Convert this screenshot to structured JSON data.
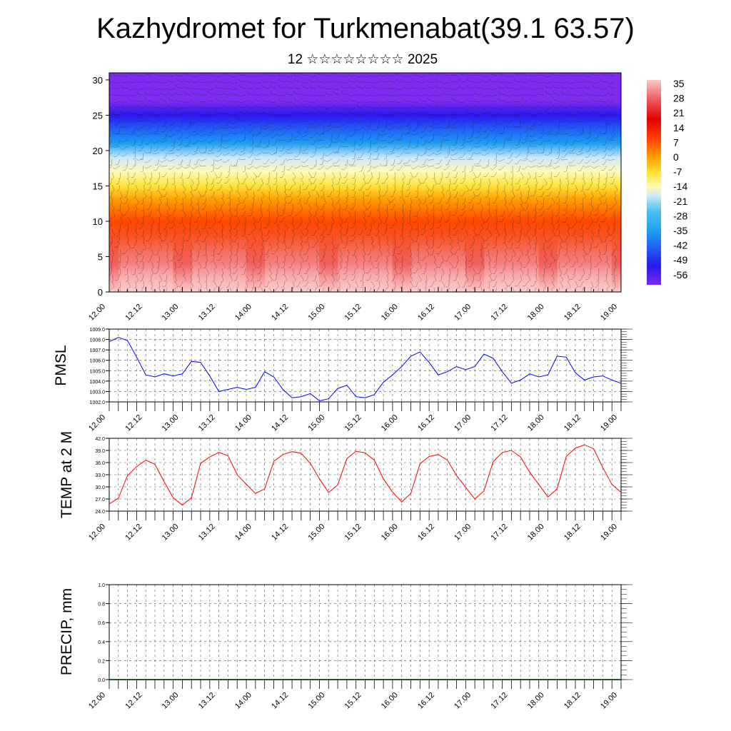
{
  "title": "Kazhydromet for Turkmenabat(39.1 63.57)",
  "subtitle": "12 ☆☆☆☆☆☆☆☆ 2025",
  "time_ticks": [
    "12.00",
    "12.12",
    "13.00",
    "13.12",
    "14.00",
    "14.12",
    "15.00",
    "15.12",
    "16.00",
    "16.12",
    "17.00",
    "17.12",
    "18.00",
    "18.12",
    "19.00"
  ],
  "chart_data": [
    {
      "type": "heatmap",
      "panel": "cross-section",
      "x_categories": [
        "12.00",
        "12.12",
        "13.00",
        "13.12",
        "14.00",
        "14.12",
        "15.00",
        "15.12",
        "16.00",
        "16.12",
        "17.00",
        "17.12",
        "18.00",
        "18.12",
        "19.00"
      ],
      "y_ticks": [
        "0",
        "5",
        "10",
        "15",
        "20",
        "25",
        "30"
      ],
      "ylim": [
        0,
        31
      ],
      "colorbar_labels": [
        "35",
        "28",
        "21",
        "14",
        "7",
        "0",
        "-7",
        "-14",
        "-21",
        "-28",
        "-35",
        "-42",
        "-49",
        "-56"
      ],
      "colorbar_range": [
        -60,
        39
      ],
      "color_stops": [
        {
          "level": 39,
          "color": "#fbcaca"
        },
        {
          "level": 30,
          "color": "#f06060"
        },
        {
          "level": 20,
          "color": "#e00000"
        },
        {
          "level": 10,
          "color": "#ff4800"
        },
        {
          "level": 2,
          "color": "#ff9c00"
        },
        {
          "level": -6,
          "color": "#ffe33a"
        },
        {
          "level": -13,
          "color": "#fefab8"
        },
        {
          "level": -17,
          "color": "#cbe9f7"
        },
        {
          "level": -24,
          "color": "#55c2f0"
        },
        {
          "level": -34,
          "color": "#1f9ff2"
        },
        {
          "level": -42,
          "color": "#2060f4"
        },
        {
          "level": -51,
          "color": "#2a17ee"
        },
        {
          "level": -60,
          "color": "#7e2af0"
        }
      ],
      "temperature_profile": [
        {
          "height": 0,
          "value": 37
        },
        {
          "height": 4,
          "value": 26
        },
        {
          "height": 10,
          "value": 13
        },
        {
          "height": 13,
          "value": 4
        },
        {
          "height": 15,
          "value": -4
        },
        {
          "height": 17,
          "value": -12
        },
        {
          "height": 19,
          "value": -20
        },
        {
          "height": 21,
          "value": -30
        },
        {
          "height": 23,
          "value": -40
        },
        {
          "height": 25,
          "value": -50
        },
        {
          "height": 27,
          "value": -57
        },
        {
          "height": 31,
          "value": -60
        }
      ],
      "overlay": "wind barbs"
    },
    {
      "type": "line",
      "ylabel": "PMSL",
      "x": [
        "12.00",
        "12.03",
        "12.06",
        "12.09",
        "12.12",
        "12.15",
        "12.18",
        "12.21",
        "13.00",
        "13.03",
        "13.06",
        "13.09",
        "13.12",
        "13.15",
        "13.18",
        "13.21",
        "14.00",
        "14.03",
        "14.06",
        "14.09",
        "14.12",
        "14.15",
        "14.18",
        "14.21",
        "15.00",
        "15.03",
        "15.06",
        "15.09",
        "15.12",
        "15.15",
        "15.18",
        "15.21",
        "16.00",
        "16.03",
        "16.06",
        "16.09",
        "16.12",
        "16.15",
        "16.18",
        "16.21",
        "17.00",
        "17.03",
        "17.06",
        "17.09",
        "17.12",
        "17.15",
        "17.18",
        "17.21",
        "18.00",
        "18.03",
        "18.06",
        "18.09",
        "18.12",
        "18.15",
        "18.18",
        "18.21",
        "19.00"
      ],
      "series": [
        {
          "color": "#0000ff",
          "values": [
            1007.8,
            1008.2,
            1007.9,
            1006.3,
            1004.6,
            1004.4,
            1004.7,
            1004.5,
            1004.7,
            1005.9,
            1005.8,
            1004.5,
            1003.0,
            1003.2,
            1003.4,
            1003.2,
            1003.4,
            1004.9,
            1004.4,
            1003.2,
            1002.4,
            1002.5,
            1002.8,
            1002.1,
            1002.3,
            1003.3,
            1003.6,
            1002.5,
            1002.4,
            1002.7,
            1003.9,
            1004.6,
            1005.4,
            1006.4,
            1006.8,
            1005.8,
            1004.6,
            1004.9,
            1005.4,
            1005.1,
            1005.4,
            1006.6,
            1006.2,
            1004.9,
            1003.8,
            1004.1,
            1004.7,
            1004.4,
            1004.6,
            1006.4,
            1006.3,
            1004.8,
            1004.1,
            1004.4,
            1004.5,
            1004.1,
            1003.8
          ]
        }
      ],
      "y_ticks": [
        "1002.0",
        "1003.0",
        "1004.0",
        "1005.0",
        "1006.0",
        "1007.0",
        "1008.0",
        "1009.0"
      ],
      "ylim": [
        1002,
        1009
      ]
    },
    {
      "type": "line",
      "ylabel": "TEMP at 2 M",
      "x": [
        "12.00",
        "12.03",
        "12.06",
        "12.09",
        "12.12",
        "12.15",
        "12.18",
        "12.21",
        "13.00",
        "13.03",
        "13.06",
        "13.09",
        "13.12",
        "13.15",
        "13.18",
        "13.21",
        "14.00",
        "14.03",
        "14.06",
        "14.09",
        "14.12",
        "14.15",
        "14.18",
        "14.21",
        "15.00",
        "15.03",
        "15.06",
        "15.09",
        "15.12",
        "15.15",
        "15.18",
        "15.21",
        "16.00",
        "16.03",
        "16.06",
        "16.09",
        "16.12",
        "16.15",
        "16.18",
        "16.21",
        "17.00",
        "17.03",
        "17.06",
        "17.09",
        "17.12",
        "17.15",
        "17.18",
        "17.21",
        "18.00",
        "18.03",
        "18.06",
        "18.09",
        "18.12",
        "18.15",
        "18.18",
        "18.21",
        "19.00"
      ],
      "series": [
        {
          "color": "#ff0000",
          "values": [
            25.8,
            27.2,
            32.8,
            35.0,
            36.6,
            35.6,
            31.3,
            27.3,
            25.5,
            27.3,
            35.8,
            37.4,
            38.5,
            37.7,
            33.0,
            30.6,
            28.4,
            29.5,
            36.3,
            38.0,
            38.7,
            38.3,
            35.8,
            32.0,
            28.6,
            30.5,
            37.0,
            38.8,
            38.4,
            36.6,
            32.0,
            28.7,
            26.3,
            28.4,
            35.7,
            37.5,
            38.0,
            36.6,
            32.8,
            29.9,
            27.0,
            29.0,
            36.2,
            38.5,
            39.0,
            37.4,
            33.6,
            30.6,
            27.5,
            29.5,
            37.5,
            39.6,
            40.4,
            39.4,
            34.8,
            30.6,
            28.6
          ]
        }
      ],
      "y_ticks": [
        "24.0",
        "27.0",
        "30.0",
        "33.0",
        "36.0",
        "39.0",
        "42.0"
      ],
      "ylim": [
        24,
        42
      ]
    },
    {
      "type": "bar",
      "ylabel": "PRECIP, mm",
      "x": [
        "12.00",
        "12.03",
        "12.06",
        "12.09",
        "12.12",
        "12.15",
        "12.18",
        "12.21",
        "13.00",
        "13.03",
        "13.06",
        "13.09",
        "13.12",
        "13.15",
        "13.18",
        "13.21",
        "14.00",
        "14.03",
        "14.06",
        "14.09",
        "14.12",
        "14.15",
        "14.18",
        "14.21",
        "15.00",
        "15.03",
        "15.06",
        "15.09",
        "15.12",
        "15.15",
        "15.18",
        "15.21",
        "16.00",
        "16.03",
        "16.06",
        "16.09",
        "16.12",
        "16.15",
        "16.18",
        "16.21",
        "17.00",
        "17.03",
        "17.06",
        "17.09",
        "17.12",
        "17.15",
        "17.18",
        "17.21",
        "18.00",
        "18.03",
        "18.06",
        "18.09",
        "18.12",
        "18.15",
        "18.18",
        "18.21",
        "19.00"
      ],
      "values": [
        0,
        0,
        0,
        0,
        0,
        0,
        0,
        0,
        0,
        0,
        0,
        0,
        0,
        0,
        0,
        0,
        0,
        0,
        0,
        0,
        0,
        0,
        0,
        0,
        0,
        0,
        0,
        0,
        0,
        0,
        0,
        0,
        0,
        0,
        0,
        0,
        0,
        0,
        0,
        0,
        0,
        0,
        0,
        0,
        0,
        0,
        0,
        0,
        0,
        0,
        0,
        0,
        0,
        0,
        0,
        0,
        0
      ],
      "y_ticks": [
        "0.0",
        "0.2",
        "0.4",
        "0.6",
        "0.8",
        "1.0"
      ],
      "ylim": [
        0,
        1
      ]
    }
  ]
}
